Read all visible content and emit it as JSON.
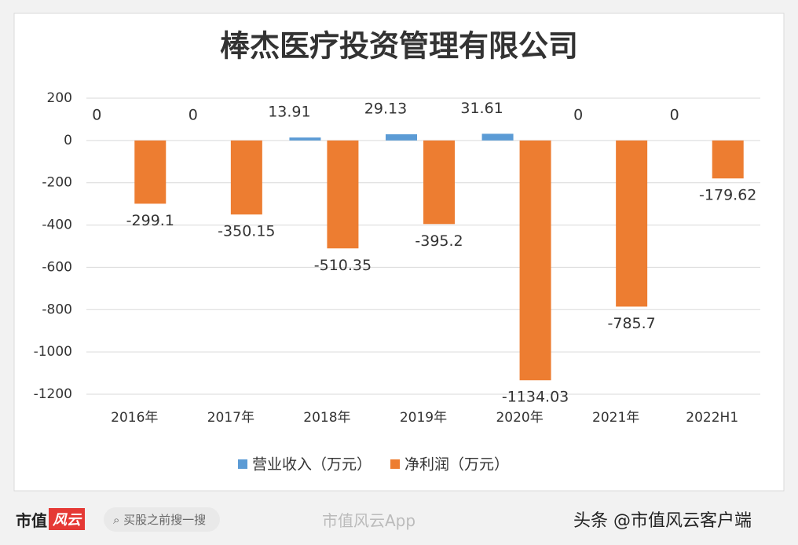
{
  "chart_data": {
    "type": "bar",
    "title": "棒杰医疗投资管理有限公司",
    "categories": [
      "2016年",
      "2017年",
      "2018年",
      "2019年",
      "2020年",
      "2021年",
      "2022H1"
    ],
    "series": [
      {
        "name": "营业收入（万元）",
        "color": "#5b9bd5",
        "values": [
          0,
          0,
          13.91,
          29.13,
          31.61,
          0,
          0
        ]
      },
      {
        "name": "净利润（万元）",
        "color": "#ed7d31",
        "values": [
          -299.1,
          -350.15,
          -510.35,
          -395.2,
          -1134.03,
          -785.7,
          -179.62
        ]
      }
    ],
    "ylim": [
      -1200,
      200
    ],
    "yticks": [
      200,
      0,
      -200,
      -400,
      -600,
      -800,
      -1000,
      -1200
    ],
    "grid": true,
    "legend": "bottom"
  },
  "footer": {
    "logo": "市值",
    "logo_badge": "风云",
    "search": "买股之前搜一搜",
    "watermark": "市值风云App",
    "byline": "头条 @市值风云客户端"
  }
}
